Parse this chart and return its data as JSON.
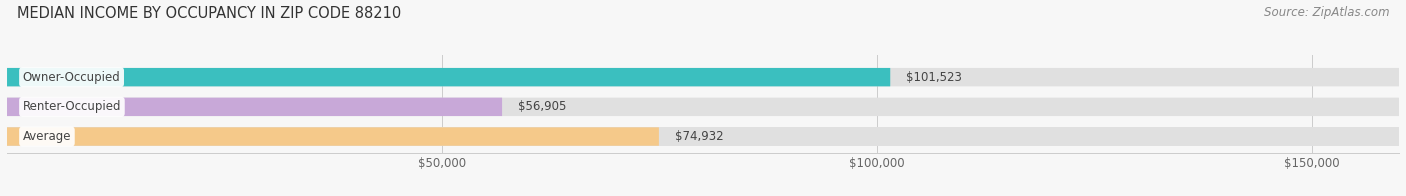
{
  "title": "MEDIAN INCOME BY OCCUPANCY IN ZIP CODE 88210",
  "source": "Source: ZipAtlas.com",
  "categories": [
    "Owner-Occupied",
    "Renter-Occupied",
    "Average"
  ],
  "values": [
    101523,
    56905,
    74932
  ],
  "labels": [
    "$101,523",
    "$56,905",
    "$74,932"
  ],
  "bar_colors": [
    "#3bbfbf",
    "#c8a8d8",
    "#f5c98a"
  ],
  "bar_bg_color": "#e0e0e0",
  "xlim": [
    0,
    160000
  ],
  "xticks": [
    50000,
    100000,
    150000
  ],
  "xticklabels": [
    "$50,000",
    "$100,000",
    "$150,000"
  ],
  "title_fontsize": 10.5,
  "source_fontsize": 8.5,
  "label_fontsize": 8.5,
  "category_fontsize": 8.5,
  "bg_color": "#f7f7f7"
}
